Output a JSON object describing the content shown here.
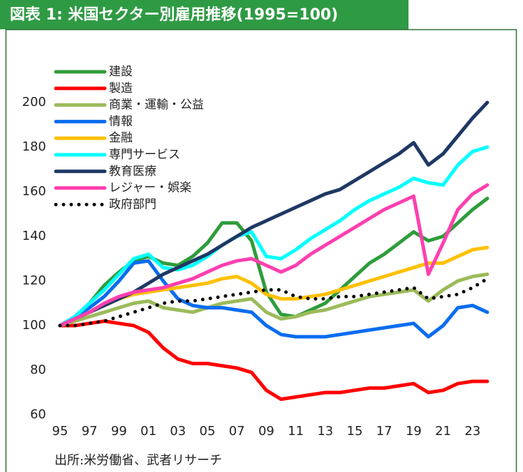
{
  "chart_data": {
    "type": "line",
    "title": "図表 1:  米国セクター別雇用推移(1995=100)",
    "source": "出所:米労働省、武者リサーチ",
    "categories": [
      "95",
      null,
      "97",
      null,
      "99",
      null,
      "01",
      null,
      "03",
      null,
      "05",
      null,
      "07",
      null,
      "09",
      null,
      "11",
      null,
      "13",
      null,
      "15",
      null,
      "17",
      null,
      "19",
      null,
      "21",
      null,
      "23",
      null
    ],
    "ylim": [
      60,
      200
    ],
    "yticks": [
      60,
      80,
      100,
      120,
      140,
      160,
      180,
      200
    ],
    "grid": false,
    "legend": "top-left",
    "series": [
      {
        "name": "建設",
        "color": "#2e9c3a",
        "style": "solid",
        "values": [
          100,
          104,
          110,
          118,
          124,
          129,
          131,
          128,
          127,
          131,
          137,
          146,
          146,
          138,
          115,
          105,
          104,
          107,
          110,
          116,
          122,
          128,
          132,
          137,
          142,
          138,
          140,
          146,
          152,
          157
        ]
      },
      {
        "name": "製造",
        "color": "#ff0000",
        "style": "solid",
        "values": [
          100,
          100,
          101,
          102,
          101,
          100,
          97,
          90,
          85,
          83,
          83,
          82,
          81,
          79,
          71,
          67,
          68,
          69,
          70,
          70,
          71,
          72,
          72,
          73,
          74,
          70,
          71,
          74,
          75,
          75
        ]
      },
      {
        "name": "商業・運輸・公益",
        "color": "#9bbb59",
        "style": "solid",
        "values": [
          100,
          102,
          104,
          106,
          108,
          110,
          111,
          108,
          107,
          106,
          108,
          110,
          111,
          112,
          106,
          103,
          104,
          106,
          107,
          109,
          111,
          113,
          114,
          115,
          116,
          111,
          116,
          120,
          122,
          123
        ]
      },
      {
        "name": "情報",
        "color": "#0a6cf0",
        "style": "solid",
        "values": [
          100,
          104,
          108,
          113,
          120,
          128,
          129,
          120,
          112,
          109,
          108,
          108,
          107,
          106,
          100,
          96,
          95,
          95,
          95,
          96,
          97,
          98,
          99,
          100,
          101,
          95,
          100,
          108,
          109,
          106
        ]
      },
      {
        "name": "金融",
        "color": "#ffc000",
        "style": "solid",
        "values": [
          100,
          103,
          106,
          109,
          112,
          114,
          115,
          116,
          117,
          118,
          119,
          121,
          122,
          119,
          114,
          112,
          112,
          113,
          114,
          116,
          118,
          120,
          122,
          124,
          126,
          128,
          128,
          131,
          134,
          135
        ]
      },
      {
        "name": "専門サービス",
        "color": "#00ffff",
        "style": "solid",
        "values": [
          100,
          104,
          110,
          116,
          123,
          130,
          132,
          126,
          125,
          127,
          131,
          136,
          140,
          142,
          131,
          130,
          134,
          139,
          143,
          147,
          152,
          156,
          159,
          162,
          166,
          164,
          163,
          172,
          178,
          180
        ]
      },
      {
        "name": "教育医療",
        "color": "#1f3864",
        "style": "solid",
        "values": [
          100,
          103,
          106,
          109,
          112,
          115,
          119,
          123,
          126,
          129,
          132,
          136,
          140,
          144,
          147,
          150,
          153,
          156,
          159,
          161,
          165,
          169,
          173,
          177,
          182,
          172,
          177,
          185,
          193,
          200
        ]
      },
      {
        "name": "レジャー・娯楽",
        "color": "#ff3fb0",
        "style": "solid",
        "values": [
          100,
          103,
          106,
          110,
          113,
          115,
          116,
          117,
          119,
          121,
          124,
          127,
          129,
          130,
          127,
          124,
          127,
          132,
          136,
          140,
          144,
          148,
          152,
          155,
          158,
          123,
          137,
          152,
          159,
          163
        ]
      },
      {
        "name": "政府部門",
        "color": "#000000",
        "style": "dotted",
        "values": [
          100,
          100,
          101,
          102,
          104,
          106,
          108,
          110,
          111,
          111,
          112,
          113,
          114,
          115,
          116,
          116,
          113,
          112,
          112,
          113,
          113,
          114,
          115,
          116,
          117,
          112,
          113,
          114,
          117,
          121
        ]
      }
    ]
  }
}
